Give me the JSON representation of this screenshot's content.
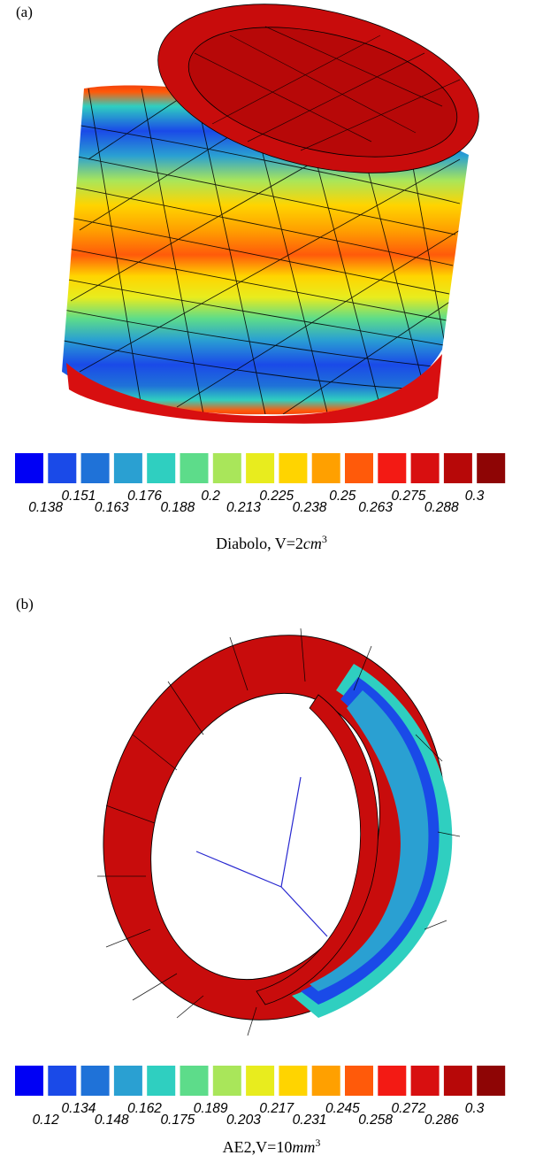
{
  "panels": [
    {
      "label": "(a)",
      "caption_name": "Diabolo, V=2",
      "caption_unit": "cm",
      "caption_exp": "3",
      "colorbar": {
        "upper_ticks": [
          "0.151",
          "0.176",
          "0.2",
          "0.225",
          "0.25",
          "0.275",
          "0.3"
        ],
        "lower_ticks": [
          "0.138",
          "0.163",
          "0.188",
          "0.213",
          "0.238",
          "0.263",
          "0.288"
        ]
      }
    },
    {
      "label": "(b)",
      "caption_name": "AE2,V=10",
      "caption_unit": "mm",
      "caption_exp": "3",
      "colorbar": {
        "upper_ticks": [
          "0.134",
          "0.162",
          "0.189",
          "0.217",
          "0.245",
          "0.272",
          "0.3"
        ],
        "lower_ticks": [
          "0.12",
          "0.148",
          "0.175",
          "0.203",
          "0.231",
          "0.258",
          "0.286"
        ]
      }
    }
  ],
  "colormap": [
    "#0000f5",
    "#1a4ae8",
    "#1f72d8",
    "#2aa0d2",
    "#2fcfc0",
    "#5ddc8a",
    "#a9e65a",
    "#e8ec1e",
    "#ffd400",
    "#ffa000",
    "#ff5a0a",
    "#f31a14",
    "#d80f10",
    "#b70808",
    "#8e0505"
  ]
}
